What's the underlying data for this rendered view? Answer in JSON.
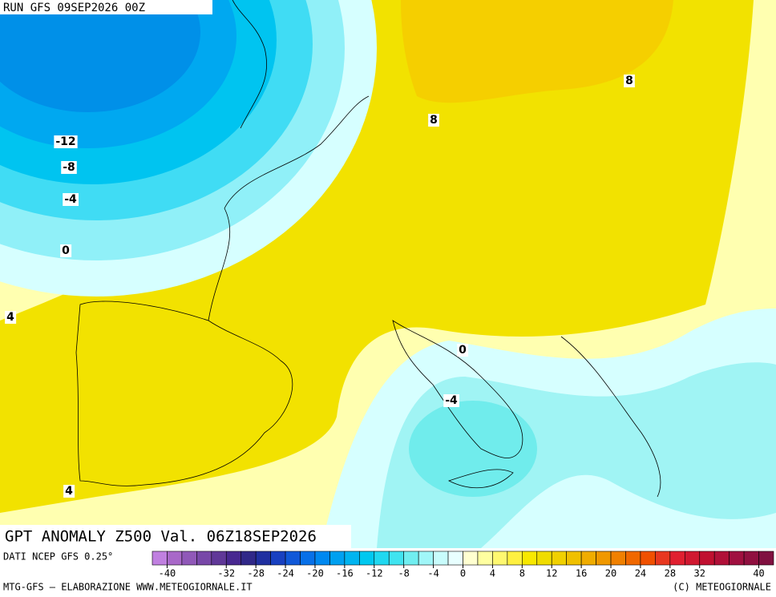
{
  "header": {
    "run": "RUN GFS 09SEP2026 00Z"
  },
  "map": {
    "title": "GPT ANOMALY Z500 Val. 06Z18SEP2026",
    "contour_labels": [
      -12,
      -8,
      -4,
      0,
      4,
      8,
      8,
      0,
      -4,
      4
    ]
  },
  "legend": {
    "source": "DATI NCEP GFS 0.25°",
    "range": [
      -42,
      42
    ],
    "colors": [
      "#c080e0",
      "#a868c8",
      "#9058b8",
      "#7848a8",
      "#603898",
      "#482890",
      "#302888",
      "#2030a0",
      "#1840c0",
      "#1058d8",
      "#0870e8",
      "#0088f0",
      "#00a0f0",
      "#00b4f0",
      "#00c8f0",
      "#20d8f0",
      "#40e4f0",
      "#70eef0",
      "#a0f6f8",
      "#c8fcfc",
      "#e8ffff",
      "#ffffd0",
      "#ffffa0",
      "#fff870",
      "#fff040",
      "#f8e800",
      "#f0dc00",
      "#f0d000",
      "#f0c000",
      "#f0ac00",
      "#f09800",
      "#f08000",
      "#f06800",
      "#f05000",
      "#e83820",
      "#e02030",
      "#d01830",
      "#c01030",
      "#b01038",
      "#a01040",
      "#901040",
      "#801040"
    ],
    "ticks": [
      -40,
      -32,
      -28,
      -24,
      -20,
      -16,
      -12,
      -8,
      -4,
      0,
      4,
      8,
      12,
      16,
      20,
      24,
      28,
      32,
      40
    ]
  },
  "footer": {
    "left": "MTG-GFS — ELABORAZIONE WWW.METEOGIORNALE.IT",
    "right": "(C) METEOGIORNALE"
  }
}
